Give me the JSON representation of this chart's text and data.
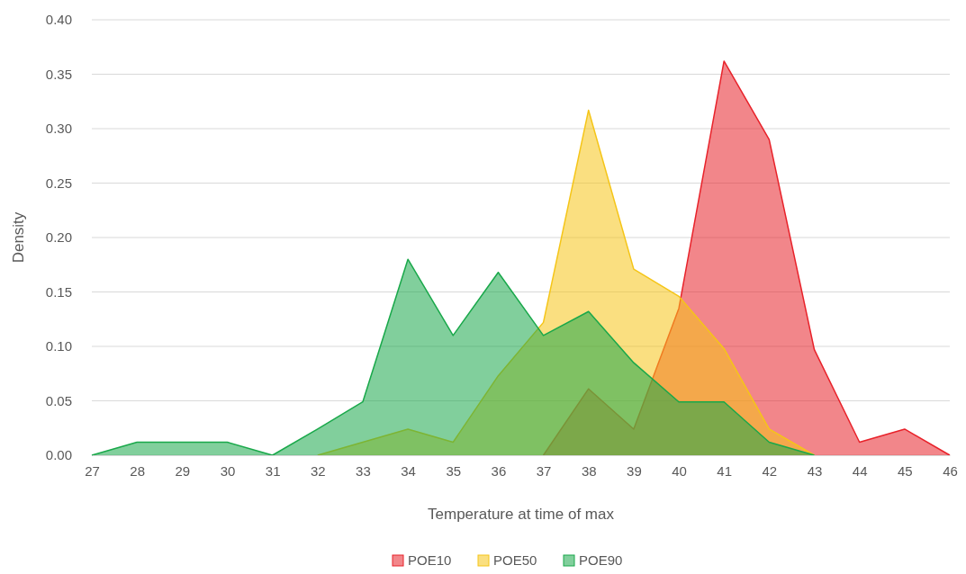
{
  "chart_data": {
    "type": "area",
    "xlabel": "Temperature at time of max",
    "ylabel": "Density",
    "x": [
      27,
      28,
      29,
      30,
      31,
      32,
      33,
      34,
      35,
      36,
      37,
      38,
      39,
      40,
      41,
      42,
      43,
      44,
      45,
      46
    ],
    "xlim": [
      27,
      46
    ],
    "xticks": [
      27,
      28,
      29,
      30,
      31,
      32,
      33,
      34,
      35,
      36,
      37,
      38,
      39,
      40,
      41,
      42,
      43,
      44,
      45,
      46
    ],
    "ylim": [
      0,
      0.4
    ],
    "yticks": [
      {
        "value": 0,
        "label": "0.00"
      },
      {
        "value": 0.05,
        "label": "0.05"
      },
      {
        "value": 0.1,
        "label": "0.10"
      },
      {
        "value": 0.15,
        "label": "0.15"
      },
      {
        "value": 0.2,
        "label": "0.20"
      },
      {
        "value": 0.25,
        "label": "0.25"
      },
      {
        "value": 0.3,
        "label": "0.30"
      },
      {
        "value": 0.35,
        "label": "0.35"
      },
      {
        "value": 0.4,
        "label": "0.40"
      }
    ],
    "grid": "y",
    "legend": "bottom",
    "series": [
      {
        "name": "POE10",
        "color": "#e8222a",
        "values": [
          null,
          null,
          null,
          null,
          null,
          null,
          null,
          null,
          null,
          null,
          0,
          0.061,
          0.024,
          0.135,
          0.362,
          0.29,
          0.097,
          0.012,
          0.024,
          0
        ]
      },
      {
        "name": "POE50",
        "color": "#f5c518",
        "values": [
          null,
          null,
          null,
          null,
          null,
          0,
          0.012,
          0.024,
          0.012,
          0.073,
          0.122,
          0.317,
          0.171,
          0.146,
          0.098,
          0.024,
          0,
          null,
          null,
          null
        ]
      },
      {
        "name": "POE90",
        "color": "#19a84a",
        "values": [
          0,
          0.012,
          0.012,
          0.012,
          0,
          0.024,
          0.049,
          0.18,
          0.11,
          0.168,
          0.11,
          0.132,
          0.085,
          0.049,
          0.049,
          0.012,
          0,
          null,
          null,
          null
        ]
      }
    ]
  }
}
